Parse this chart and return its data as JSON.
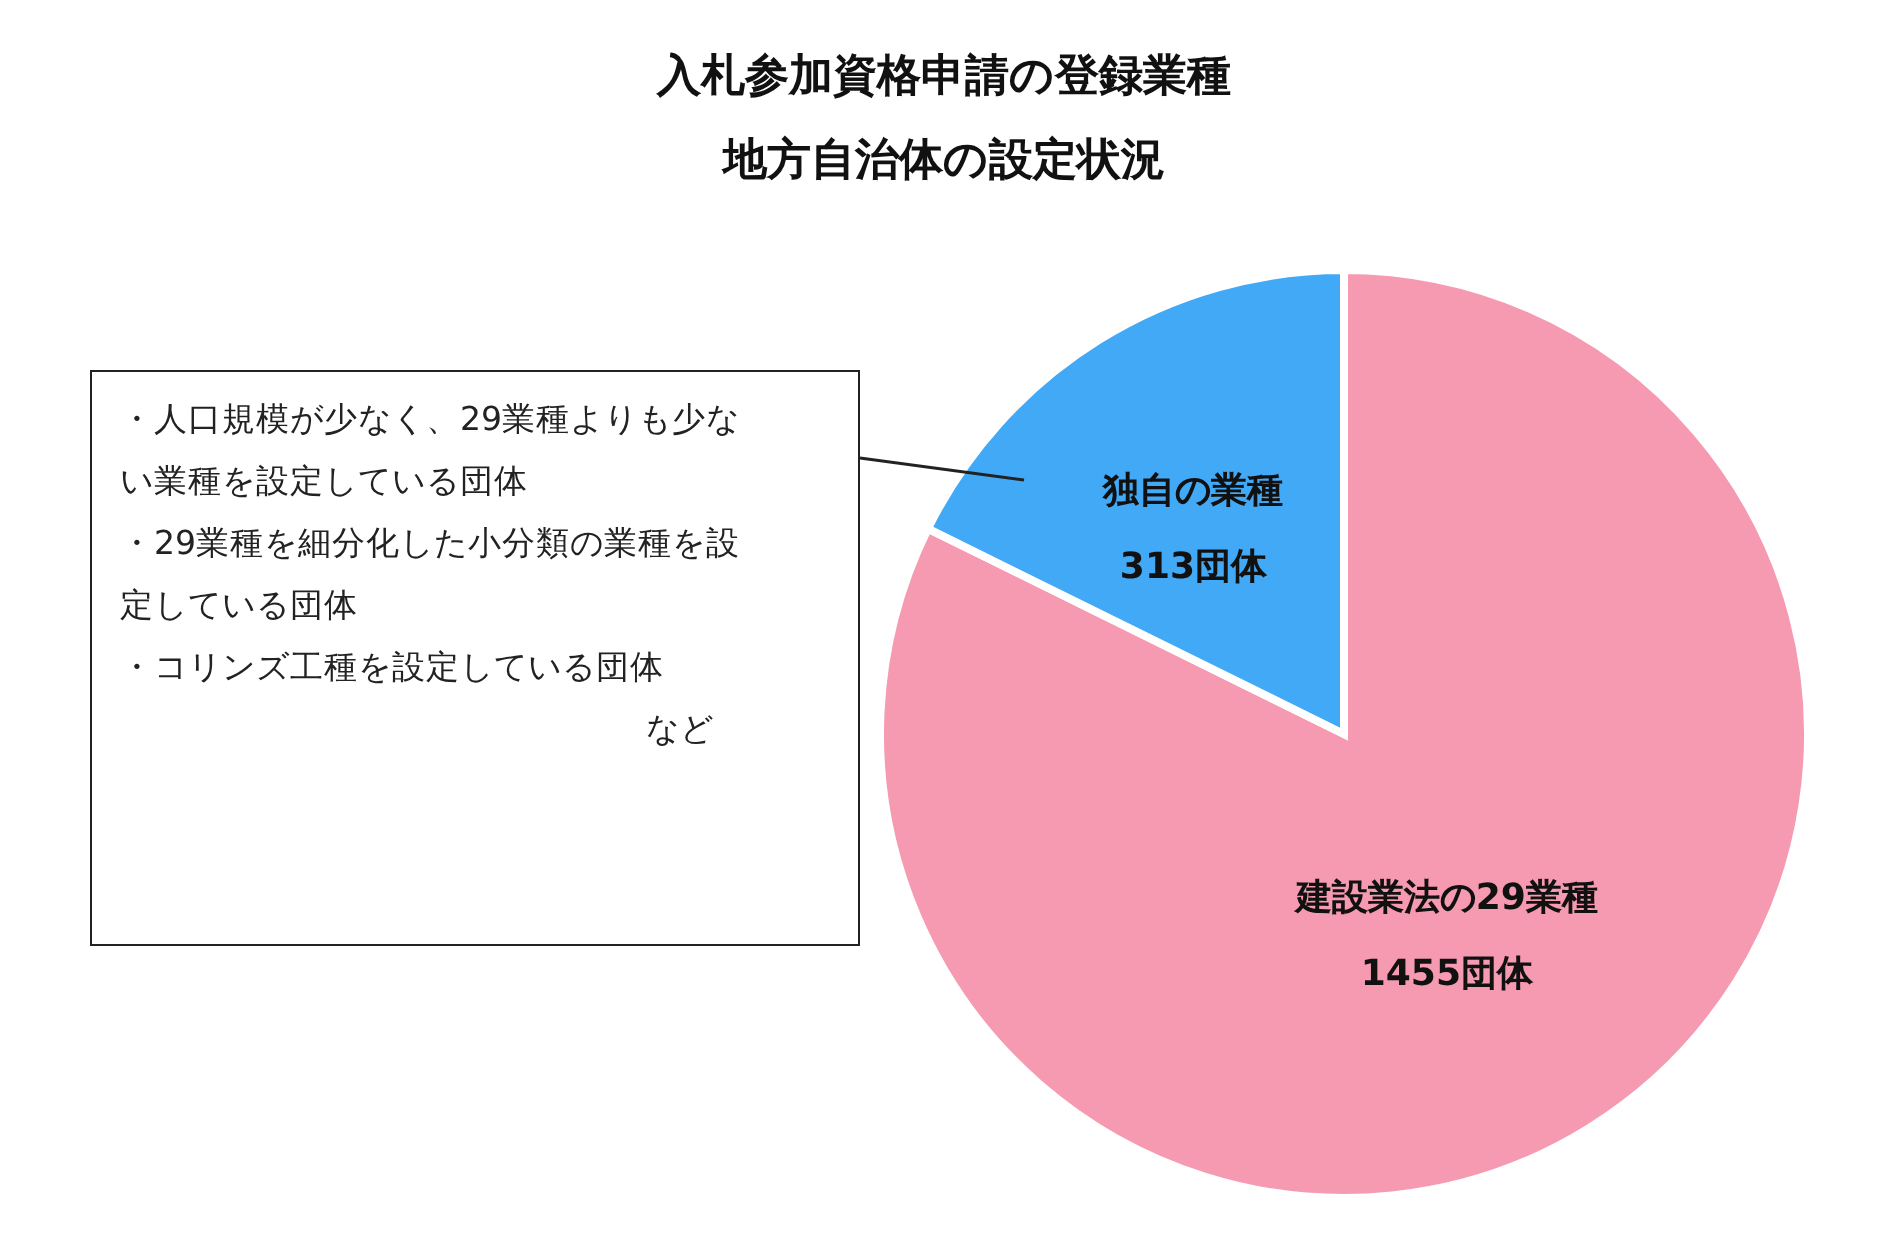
{
  "chart_data": {
    "type": "pie",
    "title": "入札参加資格申請の登録業種",
    "subtitle": "地方自治体の設定状況",
    "categories": [
      "建設業法の29業種",
      "独自の業種"
    ],
    "values": [
      1455,
      313
    ],
    "value_labels": [
      "1455団体",
      "313団体"
    ],
    "colors": [
      "#f59ab0",
      "#42a9f7"
    ],
    "legend": false,
    "annotations": [
      "・人口規模が少なく、29業種よりも少ない業種を設定している団体",
      "・29業種を細分化した小分類の業種を設定している団体",
      "・コリンズ工種を設定している団体",
      "など"
    ]
  }
}
